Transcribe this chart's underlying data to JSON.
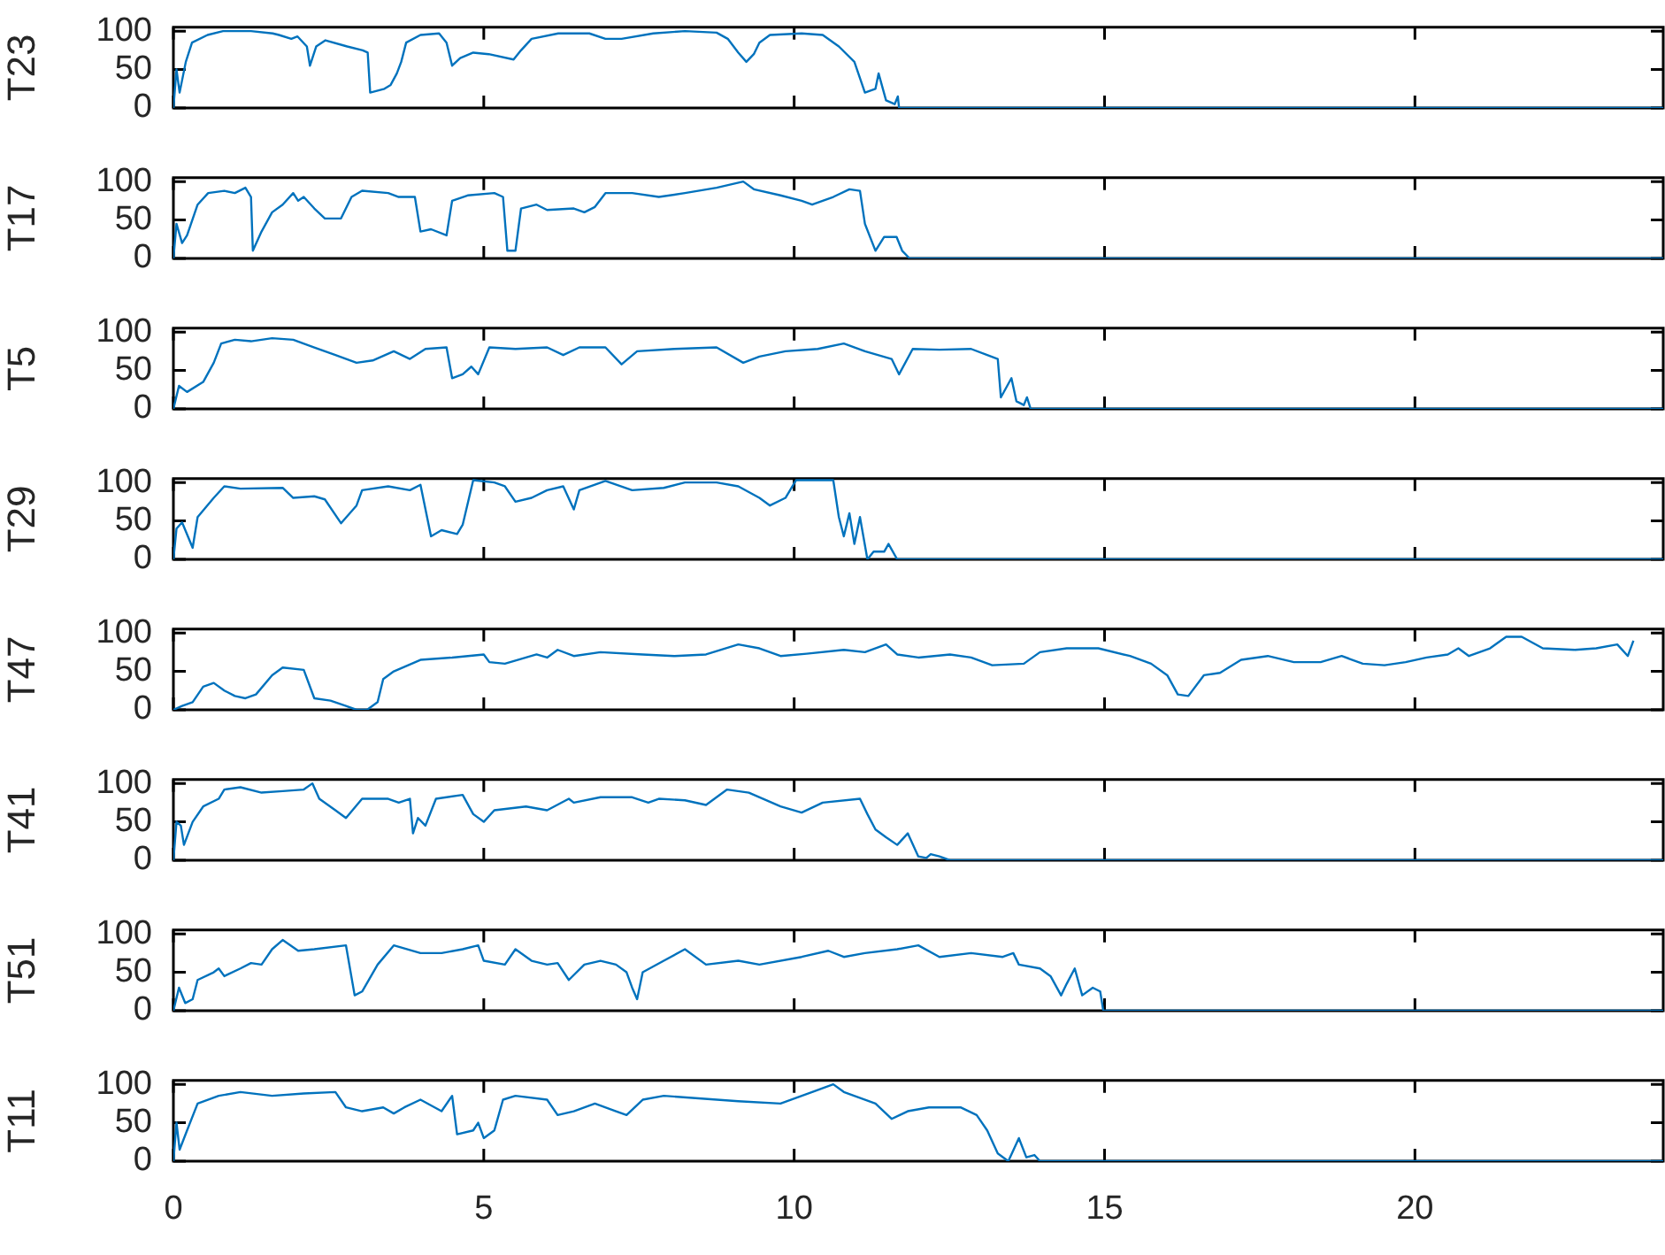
{
  "chart_data": [
    {
      "type": "line",
      "ylabel": "T23",
      "xlim": [
        0,
        24
      ],
      "xticks": [
        0,
        5,
        10,
        15,
        20
      ],
      "ylim": [
        0,
        105
      ],
      "yticks": [
        0,
        50,
        100
      ],
      "tick_labels": "y",
      "marker": "none",
      "line_style": "solid",
      "series": [
        {
          "color": "#0072bd",
          "x": [
            0,
            0.05,
            0.1,
            0.2,
            0.3,
            0.55,
            0.8,
            1.25,
            1.6,
            1.7,
            1.9,
            2.0,
            2.15,
            2.2,
            2.3,
            2.45,
            2.8,
            3.05,
            3.13,
            3.17,
            3.4,
            3.5,
            3.6,
            3.67,
            3.75,
            3.98,
            4.28,
            4.4,
            4.49,
            4.62,
            4.83,
            5.08,
            5.48,
            5.6,
            5.77,
            6.2,
            6.7,
            6.96,
            7.22,
            7.73,
            8.24,
            8.75,
            8.93,
            9.1,
            9.23,
            9.35,
            9.44,
            9.61,
            10.12,
            10.46,
            10.72,
            10.97,
            11.14,
            11.31,
            11.36,
            11.48,
            11.62,
            11.67,
            11.69,
            24
          ],
          "values": [
            0,
            50,
            20,
            60,
            85,
            95,
            100,
            100,
            97,
            95,
            90,
            93,
            80,
            55,
            80,
            88,
            80,
            75,
            72,
            20,
            25,
            30,
            45,
            60,
            85,
            95,
            97,
            85,
            55,
            65,
            72,
            70,
            63,
            75,
            90,
            97,
            97,
            90,
            90,
            97,
            100,
            98,
            90,
            72,
            60,
            70,
            85,
            95,
            97,
            95,
            80,
            60,
            20,
            25,
            45,
            10,
            5,
            15,
            0,
            0
          ]
        }
      ]
    },
    {
      "type": "line",
      "ylabel": "T17",
      "xlim": [
        0,
        24
      ],
      "xticks": [
        0,
        5,
        10,
        15,
        20
      ],
      "ylim": [
        0,
        105
      ],
      "yticks": [
        0,
        50,
        100
      ],
      "tick_labels": "y",
      "marker": "none",
      "line_style": "solid",
      "series": [
        {
          "color": "#0072bd",
          "x": [
            0,
            0.05,
            0.14,
            0.22,
            0.39,
            0.56,
            0.82,
            0.99,
            1.16,
            1.25,
            1.28,
            1.42,
            1.59,
            1.76,
            1.93,
            2.01,
            2.1,
            2.27,
            2.44,
            2.7,
            2.87,
            3.04,
            3.46,
            3.63,
            3.89,
            3.98,
            4.15,
            4.4,
            4.49,
            4.74,
            5.17,
            5.31,
            5.38,
            5.51,
            5.6,
            5.85,
            6.02,
            6.45,
            6.62,
            6.79,
            6.96,
            7.39,
            7.82,
            8.24,
            8.75,
            9.18,
            9.35,
            9.78,
            10.12,
            10.29,
            10.63,
            10.89,
            11.06,
            11.14,
            11.31,
            11.45,
            11.65,
            11.74,
            11.86,
            24
          ],
          "values": [
            0,
            45,
            20,
            30,
            70,
            85,
            88,
            85,
            92,
            80,
            10,
            35,
            60,
            70,
            85,
            75,
            80,
            65,
            52,
            52,
            80,
            88,
            85,
            80,
            80,
            35,
            38,
            30,
            75,
            82,
            85,
            80,
            10,
            10,
            65,
            70,
            63,
            65,
            60,
            67,
            85,
            85,
            80,
            85,
            92,
            100,
            90,
            82,
            75,
            70,
            80,
            90,
            88,
            45,
            10,
            28,
            28,
            10,
            0,
            0
          ]
        }
      ]
    },
    {
      "type": "line",
      "ylabel": "T5",
      "xlim": [
        0,
        24
      ],
      "xticks": [
        0,
        5,
        10,
        15,
        20
      ],
      "ylim": [
        0,
        105
      ],
      "yticks": [
        0,
        50,
        100
      ],
      "tick_labels": "y",
      "marker": "none",
      "line_style": "solid",
      "series": [
        {
          "color": "#0072bd",
          "x": [
            0,
            0.09,
            0.22,
            0.48,
            0.65,
            0.77,
            0.99,
            1.25,
            1.59,
            1.93,
            2.27,
            2.61,
            2.95,
            3.21,
            3.55,
            3.81,
            4.06,
            4.4,
            4.49,
            4.66,
            4.8,
            4.91,
            5.09,
            5.51,
            6.02,
            6.28,
            6.54,
            6.96,
            7.22,
            7.47,
            8.07,
            8.75,
            9.18,
            9.44,
            9.86,
            10.38,
            10.8,
            11.14,
            11.57,
            11.69,
            11.91,
            12.34,
            12.85,
            13.11,
            13.28,
            13.33,
            13.5,
            13.58,
            13.7,
            13.75,
            13.81,
            24
          ],
          "values": [
            0,
            30,
            22,
            35,
            60,
            85,
            90,
            88,
            92,
            90,
            80,
            70,
            60,
            63,
            75,
            65,
            78,
            80,
            40,
            45,
            55,
            45,
            80,
            78,
            80,
            70,
            80,
            80,
            58,
            75,
            78,
            80,
            60,
            68,
            75,
            78,
            85,
            75,
            65,
            45,
            78,
            77,
            78,
            70,
            65,
            15,
            40,
            10,
            5,
            15,
            0,
            0
          ]
        }
      ]
    },
    {
      "type": "line",
      "ylabel": "T29",
      "xlim": [
        0,
        24
      ],
      "xticks": [
        0,
        5,
        10,
        15,
        20
      ],
      "ylim": [
        0,
        105
      ],
      "yticks": [
        0,
        50,
        100
      ],
      "tick_labels": "y",
      "marker": "none",
      "line_style": "solid",
      "series": [
        {
          "color": "#0072bd",
          "x": [
            0,
            0.05,
            0.14,
            0.31,
            0.39,
            0.65,
            0.82,
            1.08,
            1.76,
            1.93,
            2.27,
            2.44,
            2.7,
            2.95,
            3.04,
            3.46,
            3.81,
            3.98,
            4.15,
            4.32,
            4.57,
            4.66,
            4.83,
            5.17,
            5.34,
            5.51,
            5.77,
            6.02,
            6.28,
            6.45,
            6.54,
            6.96,
            7.39,
            7.9,
            8.24,
            8.75,
            9.1,
            9.44,
            9.61,
            9.86,
            10.03,
            10.63,
            10.72,
            10.8,
            10.89,
            10.97,
            11.06,
            11.18,
            11.28,
            11.45,
            11.52,
            11.66,
            24
          ],
          "values": [
            0,
            40,
            48,
            15,
            55,
            80,
            95,
            92,
            93,
            80,
            82,
            78,
            47,
            70,
            90,
            95,
            90,
            97,
            30,
            38,
            33,
            45,
            103,
            100,
            95,
            75,
            80,
            90,
            95,
            65,
            90,
            102,
            90,
            93,
            100,
            100,
            95,
            80,
            70,
            80,
            103,
            103,
            55,
            30,
            60,
            20,
            55,
            0,
            10,
            10,
            20,
            0,
            0
          ]
        }
      ]
    },
    {
      "type": "line",
      "ylabel": "T47",
      "xlim": [
        0,
        24
      ],
      "xticks": [
        0,
        5,
        10,
        15,
        20
      ],
      "ylim": [
        0,
        105
      ],
      "yticks": [
        0,
        50,
        100
      ],
      "tick_labels": "y",
      "marker": "none",
      "line_style": "solid",
      "series": [
        {
          "color": "#0072bd",
          "x": [
            0,
            0.14,
            0.31,
            0.48,
            0.65,
            0.82,
            0.99,
            1.16,
            1.33,
            1.59,
            1.76,
            2.1,
            2.27,
            2.53,
            2.78,
            2.95,
            3.12,
            3.29,
            3.38,
            3.55,
            3.98,
            4.49,
            5.0,
            5.09,
            5.34,
            5.68,
            5.85,
            6.02,
            6.19,
            6.45,
            6.88,
            7.56,
            8.07,
            8.58,
            9.1,
            9.44,
            9.78,
            10.2,
            10.8,
            11.14,
            11.48,
            11.66,
            12.0,
            12.51,
            12.85,
            13.19,
            13.7,
            13.96,
            14.39,
            14.9,
            15.41,
            15.75,
            16.01,
            16.18,
            16.35,
            16.6,
            16.86,
            17.2,
            17.63,
            18.05,
            18.48,
            18.82,
            19.16,
            19.51,
            19.85,
            20.19,
            20.53,
            20.7,
            20.87,
            21.21,
            21.47,
            21.72,
            22.06,
            22.58,
            22.92,
            23.26,
            23.43,
            23.52
          ],
          "values": [
            0,
            5,
            10,
            30,
            35,
            25,
            18,
            15,
            20,
            45,
            55,
            52,
            15,
            12,
            5,
            0,
            0,
            10,
            40,
            50,
            65,
            68,
            72,
            62,
            60,
            68,
            72,
            68,
            78,
            70,
            75,
            72,
            70,
            72,
            85,
            80,
            70,
            73,
            78,
            75,
            85,
            72,
            68,
            72,
            68,
            58,
            60,
            75,
            80,
            80,
            70,
            60,
            45,
            20,
            18,
            45,
            48,
            65,
            70,
            62,
            62,
            70,
            60,
            58,
            62,
            68,
            72,
            80,
            70,
            80,
            95,
            95,
            80,
            78,
            80,
            85,
            70,
            90
          ]
        }
      ]
    },
    {
      "type": "line",
      "ylabel": "T41",
      "xlim": [
        0,
        24
      ],
      "xticks": [
        0,
        5,
        10,
        15,
        20
      ],
      "ylim": [
        0,
        105
      ],
      "yticks": [
        0,
        50,
        100
      ],
      "tick_labels": "y",
      "marker": "none",
      "line_style": "solid",
      "series": [
        {
          "color": "#0072bd",
          "x": [
            0,
            0.05,
            0.12,
            0.17,
            0.31,
            0.48,
            0.73,
            0.82,
            1.08,
            1.42,
            1.76,
            2.1,
            2.24,
            2.35,
            2.61,
            2.78,
            3.04,
            3.46,
            3.63,
            3.81,
            3.86,
            3.94,
            4.06,
            4.23,
            4.66,
            4.83,
            5.0,
            5.17,
            5.68,
            6.02,
            6.37,
            6.45,
            6.88,
            7.39,
            7.65,
            7.82,
            8.24,
            8.58,
            8.92,
            9.27,
            9.78,
            10.12,
            10.46,
            11.06,
            11.18,
            11.31,
            11.48,
            11.66,
            11.83,
            12.0,
            12.13,
            12.2,
            12.34,
            12.51,
            24
          ],
          "values": [
            0,
            50,
            45,
            20,
            50,
            70,
            80,
            92,
            95,
            88,
            90,
            92,
            100,
            80,
            65,
            55,
            80,
            80,
            75,
            80,
            35,
            55,
            45,
            80,
            85,
            60,
            50,
            65,
            70,
            65,
            80,
            75,
            82,
            82,
            75,
            80,
            78,
            72,
            92,
            88,
            70,
            62,
            75,
            80,
            60,
            40,
            30,
            20,
            35,
            5,
            3,
            8,
            5,
            0,
            0
          ]
        }
      ]
    },
    {
      "type": "line",
      "ylabel": "T51",
      "xlim": [
        0,
        24
      ],
      "xticks": [
        0,
        5,
        10,
        15,
        20
      ],
      "ylim": [
        0,
        105
      ],
      "yticks": [
        0,
        50,
        100
      ],
      "tick_labels": "y",
      "marker": "none",
      "line_style": "solid",
      "series": [
        {
          "color": "#0072bd",
          "x": [
            0,
            0.09,
            0.19,
            0.31,
            0.39,
            0.65,
            0.73,
            0.82,
            1.08,
            1.25,
            1.42,
            1.59,
            1.76,
            2.01,
            2.27,
            2.78,
            2.92,
            3.04,
            3.29,
            3.55,
            3.98,
            4.32,
            4.66,
            4.91,
            5.0,
            5.34,
            5.51,
            5.77,
            6.02,
            6.19,
            6.37,
            6.62,
            6.88,
            7.13,
            7.3,
            7.39,
            7.47,
            7.56,
            7.9,
            8.24,
            8.58,
            9.1,
            9.44,
            10.12,
            10.55,
            10.8,
            11.14,
            11.66,
            12.0,
            12.34,
            12.85,
            13.36,
            13.53,
            13.62,
            13.96,
            14.13,
            14.3,
            14.39,
            14.52,
            14.64,
            14.81,
            14.93,
            14.98,
            24
          ],
          "values": [
            0,
            30,
            10,
            15,
            40,
            50,
            55,
            45,
            55,
            62,
            60,
            80,
            92,
            78,
            80,
            85,
            20,
            25,
            60,
            85,
            75,
            75,
            80,
            85,
            65,
            60,
            80,
            65,
            60,
            62,
            40,
            60,
            65,
            60,
            50,
            30,
            15,
            50,
            65,
            80,
            60,
            65,
            60,
            70,
            78,
            70,
            75,
            80,
            85,
            70,
            75,
            70,
            75,
            60,
            55,
            45,
            20,
            35,
            55,
            20,
            30,
            25,
            0,
            0
          ]
        }
      ]
    },
    {
      "type": "line",
      "ylabel": "T11",
      "xlim": [
        0,
        24
      ],
      "xticks": [
        0,
        5,
        10,
        15,
        20
      ],
      "ylim": [
        0,
        105
      ],
      "yticks": [
        0,
        50,
        100
      ],
      "marker": "none",
      "line_style": "solid",
      "series": [
        {
          "color": "#0072bd",
          "x": [
            0,
            0.05,
            0.1,
            0.22,
            0.39,
            0.73,
            1.08,
            1.59,
            2.1,
            2.61,
            2.78,
            3.04,
            3.38,
            3.55,
            3.72,
            3.98,
            4.32,
            4.49,
            4.57,
            4.83,
            4.91,
            5.0,
            5.17,
            5.31,
            5.51,
            6.02,
            6.19,
            6.45,
            6.79,
            7.13,
            7.3,
            7.56,
            7.9,
            8.41,
            9.1,
            9.78,
            10.29,
            10.63,
            10.8,
            11.31,
            11.57,
            11.83,
            12.17,
            12.68,
            12.94,
            13.11,
            13.28,
            13.45,
            13.62,
            13.74,
            13.87,
            13.96,
            24
          ],
          "values": [
            0,
            50,
            15,
            40,
            75,
            85,
            90,
            85,
            88,
            90,
            70,
            65,
            70,
            62,
            70,
            80,
            65,
            85,
            35,
            40,
            50,
            30,
            40,
            80,
            85,
            80,
            60,
            65,
            75,
            65,
            60,
            80,
            85,
            82,
            78,
            75,
            90,
            100,
            90,
            75,
            55,
            65,
            70,
            70,
            60,
            40,
            10,
            0,
            30,
            5,
            8,
            0,
            0
          ]
        }
      ]
    }
  ]
}
